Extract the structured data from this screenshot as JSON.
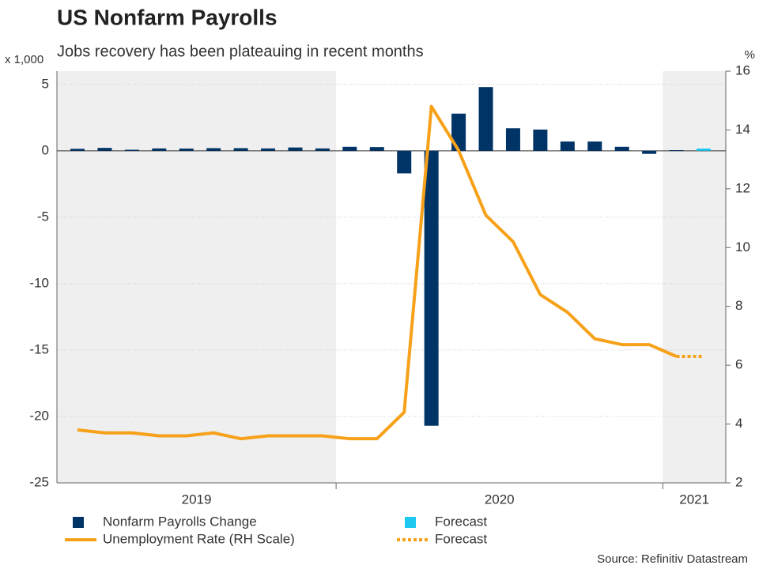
{
  "chart_data": {
    "type": "bar_line",
    "title": "US Nonfarm Payrolls",
    "subtitle": "Jobs recovery has been plateauing in recent months",
    "y_unit": "x 1,000",
    "y2_unit": "%",
    "source": "Source: Refinitiv Datastream",
    "categories": [
      null,
      null,
      null,
      null,
      null,
      null,
      null,
      null,
      null,
      null,
      null,
      null,
      null,
      null,
      null,
      null,
      null,
      null,
      null,
      null,
      null,
      null,
      null,
      null
    ],
    "periods": [
      {
        "label": "2019",
        "months": 10
      },
      {
        "label": "2020",
        "months": 12
      },
      {
        "label": "2021",
        "months": 2
      }
    ],
    "ylim": [
      -25,
      6
    ],
    "yticks": [
      5,
      0,
      -5,
      -10,
      -15,
      -20,
      -25
    ],
    "y2lim": [
      2,
      16
    ],
    "y2ticks": [
      16,
      14,
      12,
      10,
      8,
      6,
      4,
      2
    ],
    "grid": true,
    "shade_color": "#efefef",
    "series": [
      {
        "name": "Nonfarm Payrolls Change",
        "kind": "bar",
        "color": "#003366",
        "values": [
          0.15,
          0.22,
          0.08,
          0.18,
          0.17,
          0.2,
          0.2,
          0.18,
          0.25,
          0.18,
          0.3,
          0.28,
          -1.7,
          -20.7,
          2.8,
          4.8,
          1.7,
          1.6,
          0.7,
          0.7,
          0.3,
          -0.23,
          0.05,
          null
        ]
      },
      {
        "name": "Forecast",
        "kind": "bar",
        "color": "#1ec8f0",
        "values": [
          null,
          null,
          null,
          null,
          null,
          null,
          null,
          null,
          null,
          null,
          null,
          null,
          null,
          null,
          null,
          null,
          null,
          null,
          null,
          null,
          null,
          null,
          null,
          0.17
        ]
      },
      {
        "name": "Unemployment Rate (RH Scale)",
        "kind": "line",
        "axis": "y2",
        "color": "#f7a11a",
        "values": [
          3.8,
          3.7,
          3.7,
          3.6,
          3.6,
          3.7,
          3.5,
          3.6,
          3.6,
          3.6,
          3.5,
          3.5,
          4.4,
          14.8,
          13.3,
          11.1,
          10.2,
          8.4,
          7.8,
          6.9,
          6.7,
          6.7,
          6.3,
          null
        ]
      },
      {
        "name": "Forecast",
        "kind": "line",
        "dashed": true,
        "axis": "y2",
        "color": "#f7a11a",
        "values": [
          null,
          null,
          null,
          null,
          null,
          null,
          null,
          null,
          null,
          null,
          null,
          null,
          null,
          null,
          null,
          null,
          null,
          null,
          null,
          null,
          null,
          null,
          6.3,
          6.3
        ]
      }
    ]
  }
}
